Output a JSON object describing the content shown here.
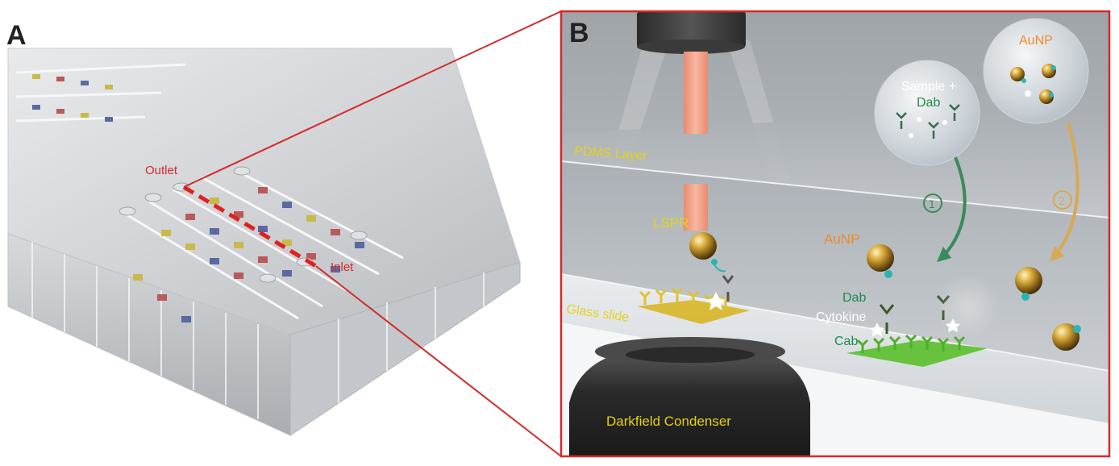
{
  "panel_a": {
    "letter": "A",
    "outlet_label": "Outlet",
    "inlet_label": "Inlet"
  },
  "panel_b": {
    "letter": "B",
    "pdms_layer_label": "PDMS Layer",
    "glass_slide_label": "Glass slide",
    "lspr_label": "LSPR",
    "sample_label_line1": "Sample +",
    "sample_label_line2": "Dab",
    "aunp_bubble_label": "AuNP",
    "aunp_label": "AuNP",
    "step1_label": "1",
    "step2_label": "2",
    "dab_label": "Dab",
    "cytokine_label": "Cytokine",
    "cab_label": "Cab",
    "condenser_label": "Darkfield Condenser"
  },
  "colors": {
    "frame_red": "#d42a2a",
    "label_yellow": "#e6d21a",
    "label_orange": "#f08a2a",
    "label_green": "#1f8a4a",
    "label_white": "#ffffff",
    "gold": "#c89a2a",
    "green_pad": "#5ac02a",
    "yellow_pad": "#d8b21a"
  }
}
